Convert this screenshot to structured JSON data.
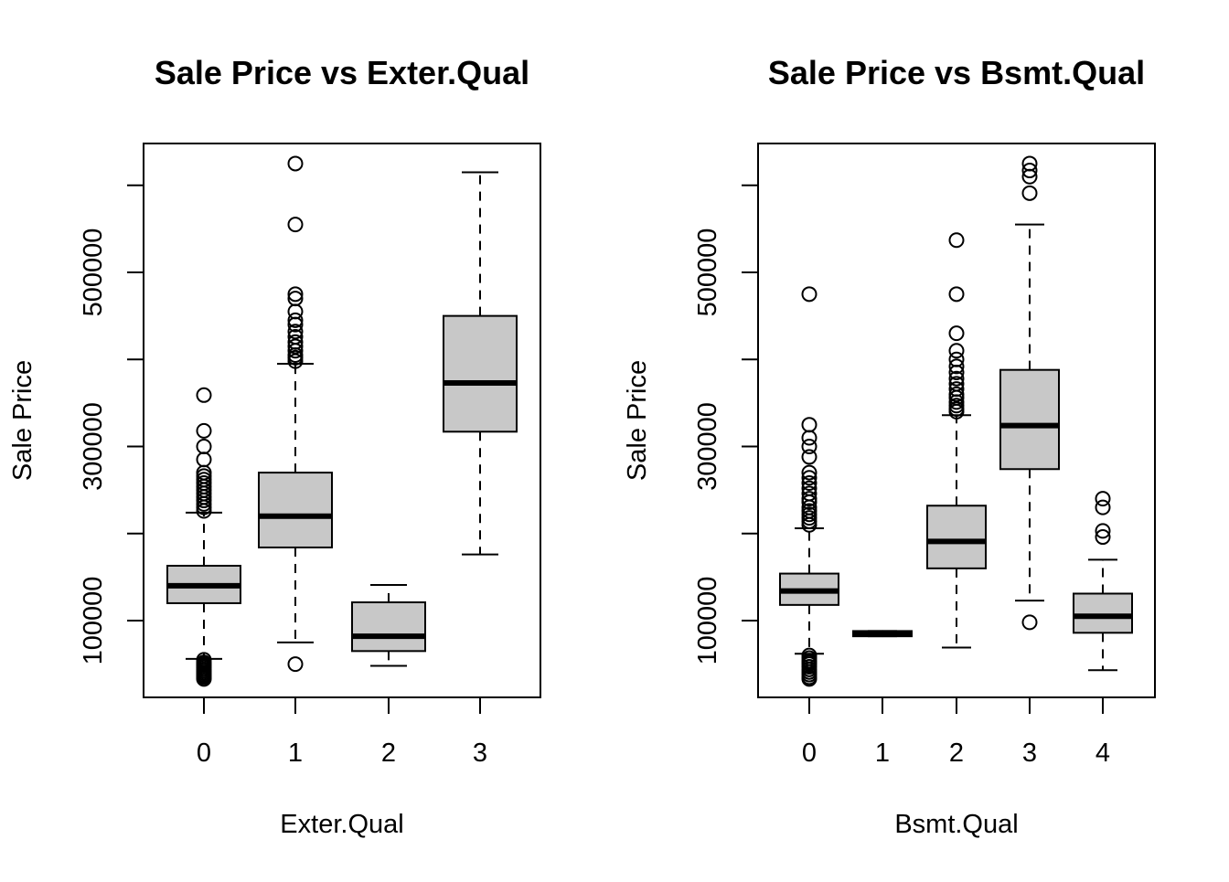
{
  "chart_data": [
    {
      "type": "boxplot",
      "title": "Sale Price vs Exter.Qual",
      "xlabel": "Exter.Qual",
      "ylabel": "Sale Price",
      "ylim": [
        20000,
        640000
      ],
      "yticks": [
        100000,
        200000,
        300000,
        400000,
        500000,
        600000
      ],
      "ytick_labels": [
        "100000",
        "",
        "300000",
        "",
        "500000",
        ""
      ],
      "categories": [
        "0",
        "1",
        "2",
        "3"
      ],
      "box_fill": "#c8c8c8",
      "boxes": [
        {
          "category": "0",
          "whisker_low": 56000,
          "q1": 120000,
          "median": 140000,
          "q3": 163000,
          "whisker_high": 224000,
          "outliers": [
            55000,
            52000,
            50000,
            48000,
            46000,
            44000,
            42000,
            40000,
            38000,
            36000,
            35000,
            33000,
            226000,
            230000,
            234000,
            238000,
            242000,
            246000,
            250000,
            254000,
            258000,
            262000,
            266000,
            270000,
            285000,
            300000,
            318000,
            359000
          ]
        },
        {
          "category": "1",
          "whisker_low": 75000,
          "q1": 184000,
          "median": 220000,
          "q3": 270000,
          "whisker_high": 395000,
          "outliers": [
            50000,
            398000,
            402000,
            405000,
            410000,
            415000,
            420000,
            426000,
            432000,
            440000,
            445000,
            455000,
            470000,
            475000,
            555000,
            625000
          ]
        },
        {
          "category": "2",
          "whisker_low": 48000,
          "q1": 65000,
          "median": 82000,
          "q3": 121000,
          "whisker_high": 141000,
          "outliers": []
        },
        {
          "category": "3",
          "whisker_low": 176000,
          "q1": 317000,
          "median": 373000,
          "q3": 450000,
          "whisker_high": 615000,
          "outliers": []
        }
      ]
    },
    {
      "type": "boxplot",
      "title": "Sale Price vs Bsmt.Qual",
      "xlabel": "Bsmt.Qual",
      "ylabel": "Sale Price",
      "ylim": [
        20000,
        640000
      ],
      "yticks": [
        100000,
        200000,
        300000,
        400000,
        500000,
        600000
      ],
      "ytick_labels": [
        "100000",
        "",
        "300000",
        "",
        "500000",
        ""
      ],
      "categories": [
        "0",
        "1",
        "2",
        "3",
        "4"
      ],
      "box_fill": "#c8c8c8",
      "boxes": [
        {
          "category": "0",
          "whisker_low": 62000,
          "q1": 118000,
          "median": 134000,
          "q3": 154000,
          "whisker_high": 206000,
          "outliers": [
            60000,
            57000,
            54000,
            52000,
            50000,
            47000,
            44000,
            41000,
            38000,
            35000,
            33000,
            210000,
            214000,
            218000,
            222000,
            226000,
            230000,
            236000,
            240000,
            246000,
            252000,
            258000,
            264000,
            270000,
            288000,
            300000,
            310000,
            325000,
            475000
          ]
        },
        {
          "category": "1",
          "whisker_low": 82000,
          "q1": 82000,
          "median": 85000,
          "q3": 88000,
          "whisker_high": 88000,
          "outliers": []
        },
        {
          "category": "2",
          "whisker_low": 69000,
          "q1": 160000,
          "median": 191000,
          "q3": 232000,
          "whisker_high": 336000,
          "outliers": [
            340000,
            343000,
            347000,
            351000,
            356000,
            360000,
            366000,
            372000,
            378000,
            385000,
            392000,
            400000,
            410000,
            430000,
            475000,
            537000
          ]
        },
        {
          "category": "3",
          "whisker_low": 123000,
          "q1": 274000,
          "median": 324000,
          "q3": 388000,
          "whisker_high": 555000,
          "outliers": [
            98000,
            591000,
            610000,
            617000,
            625000
          ]
        },
        {
          "category": "4",
          "whisker_low": 43000,
          "q1": 86000,
          "median": 105000,
          "q3": 131000,
          "whisker_high": 170000,
          "outliers": [
            196000,
            203000,
            230000,
            240000
          ]
        }
      ]
    }
  ]
}
